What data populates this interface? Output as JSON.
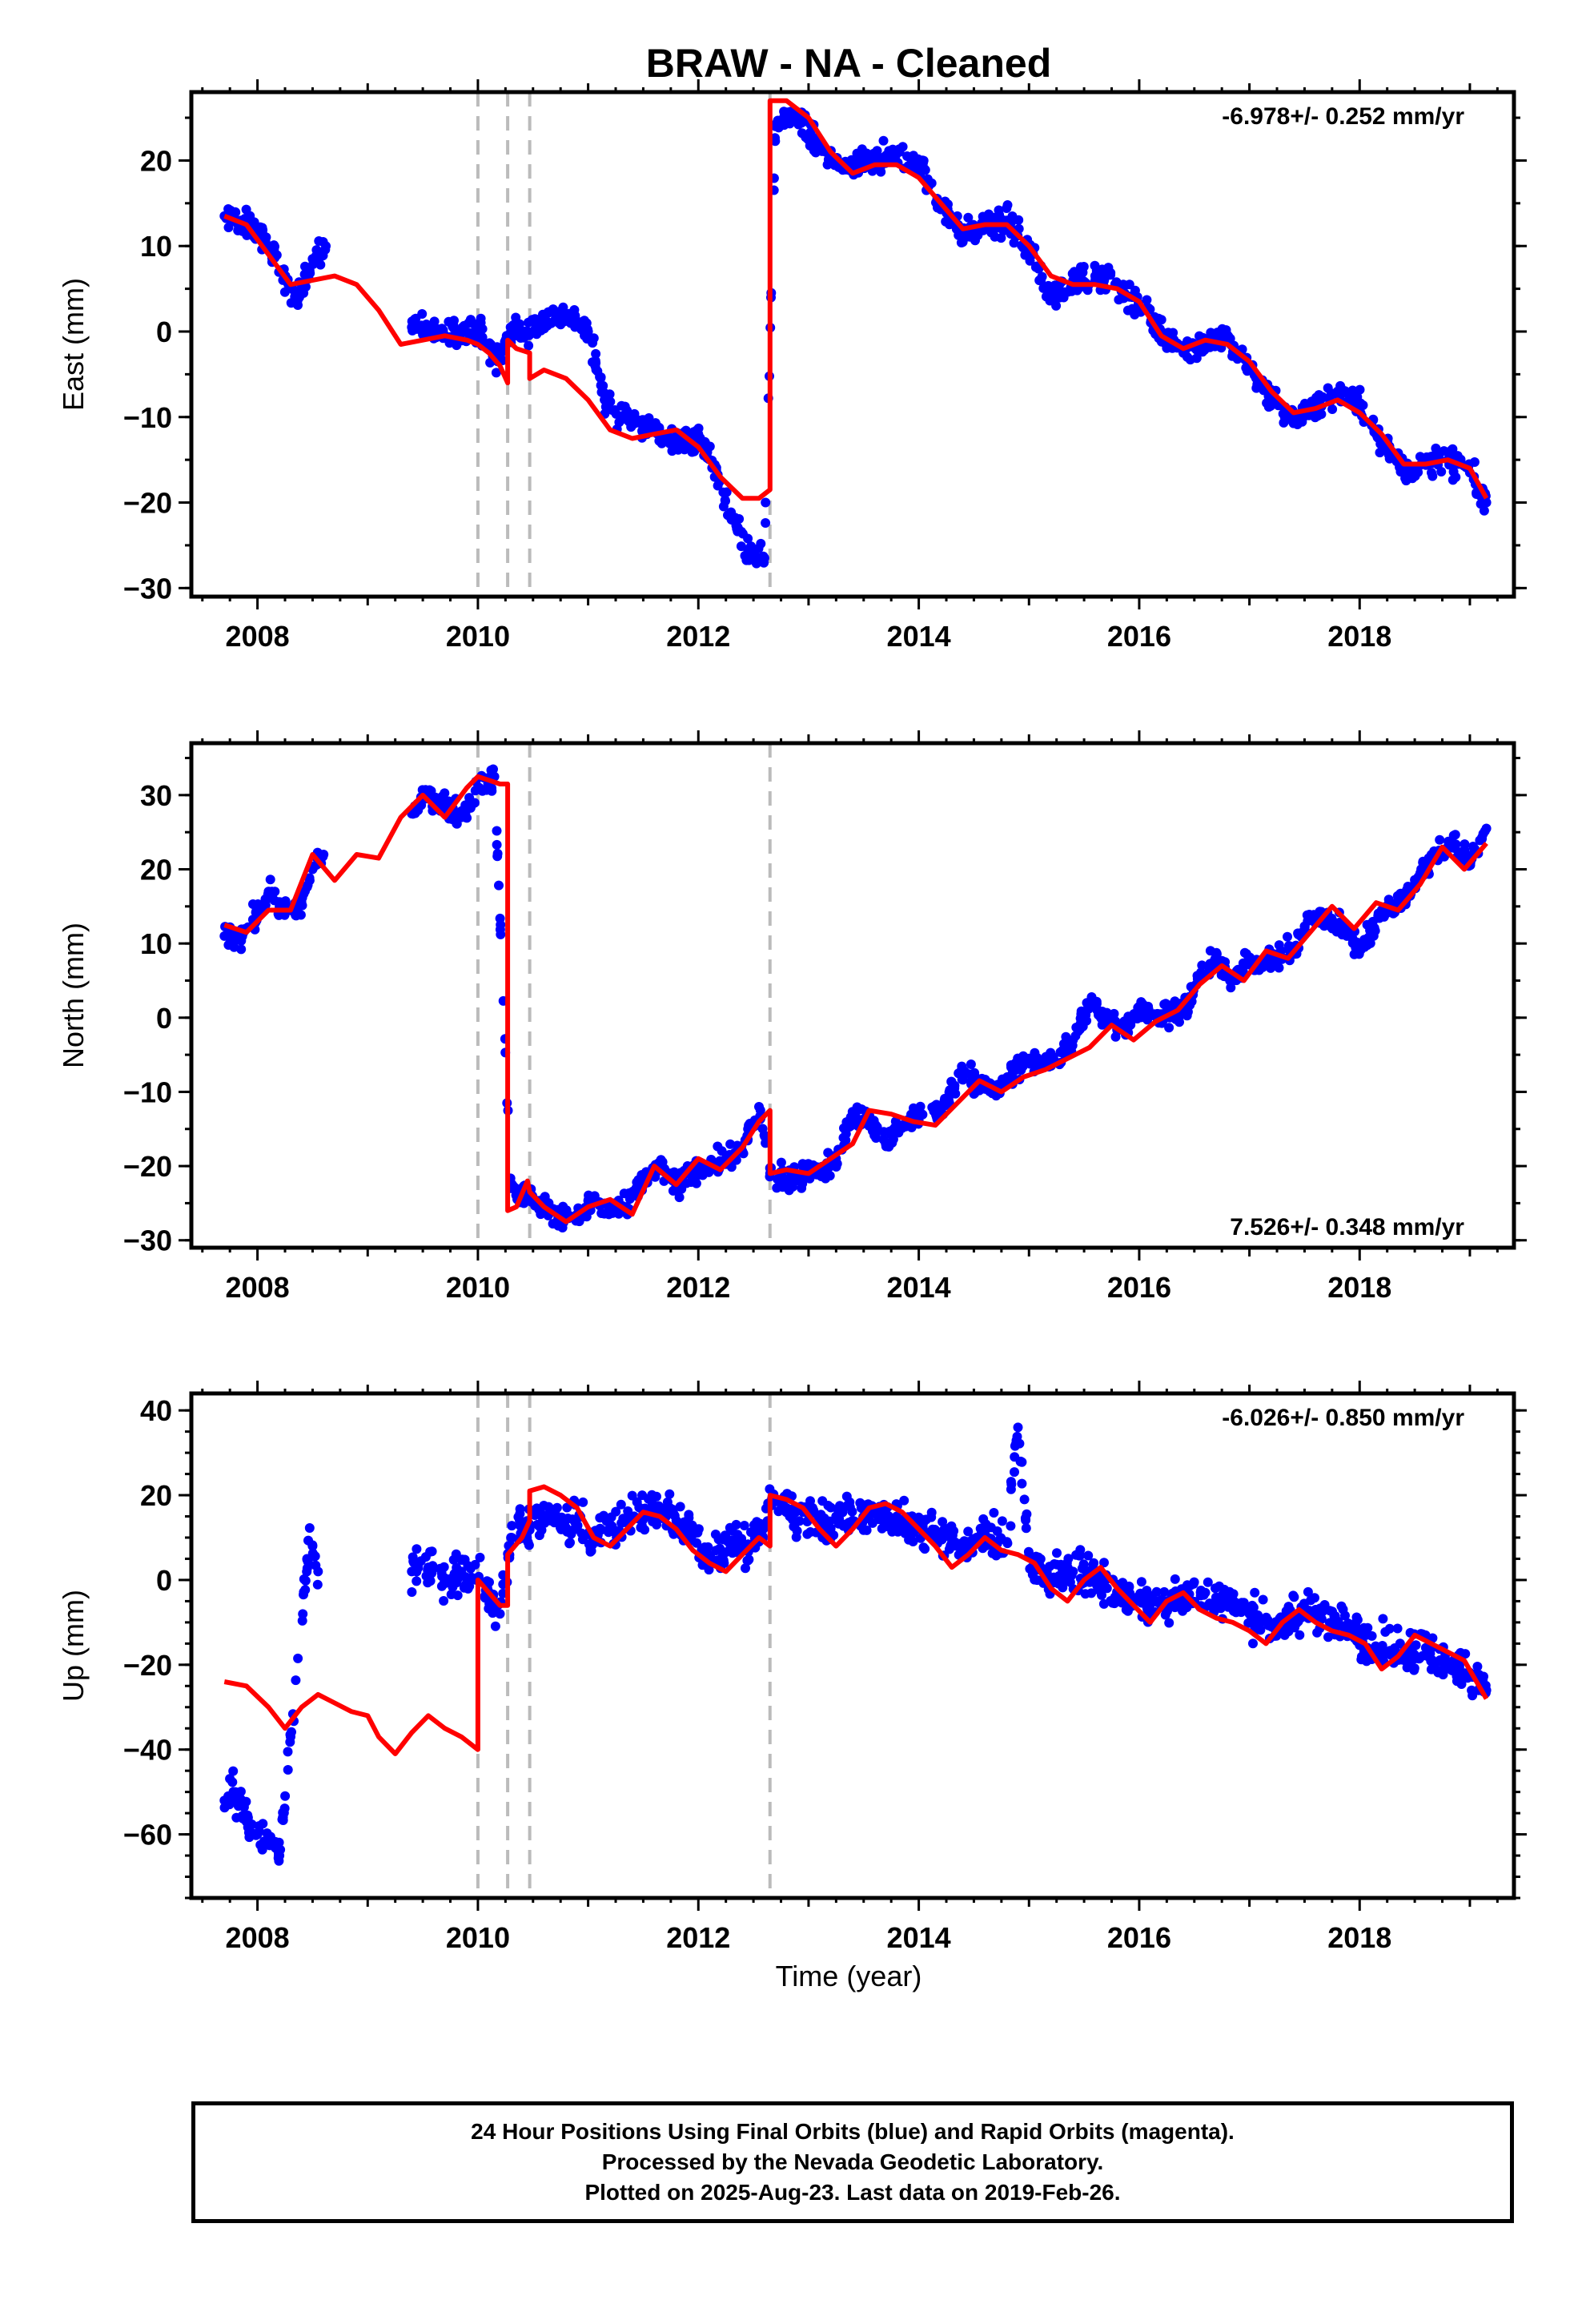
{
  "title": "BRAW  - NA - Cleaned",
  "xlabel": "Time (year)",
  "footer": [
    "24 Hour Positions Using Final Orbits (blue) and Rapid Orbits (magenta).",
    "Processed by the Nevada Geodetic Laboratory.",
    "Plotted on 2025-Aug-23. Last data on 2019-Feb-26."
  ],
  "colors": {
    "points": "#0000ff",
    "model": "#ff0000",
    "steps": "#bbbbbb"
  },
  "chart_data": [
    {
      "type": "scatter",
      "title": "",
      "xlabel": "",
      "ylabel": "East (mm)",
      "xlim": [
        2007.4,
        2019.4
      ],
      "ylim": [
        -31,
        28
      ],
      "xticks": [
        "2008",
        "2010",
        "2012",
        "2014",
        "2016",
        "2018"
      ],
      "yticks": [
        "−30",
        "−20",
        "−10",
        "0",
        "10",
        "20"
      ],
      "rate_label": "-6.978+/- 0.252 mm/yr",
      "rate_position": "top-right",
      "step_dates": [
        2010.0,
        2010.27,
        2010.47,
        2012.65
      ],
      "series": [
        {
          "name": "",
          "kind": "points",
          "x": [
            2007.7,
            2007.85,
            2008.0,
            2008.15,
            2008.28,
            2008.38,
            2008.5,
            2008.62,
            2009.4,
            2009.6,
            2009.8,
            2010.0,
            2010.18,
            2010.3,
            2010.45,
            2010.6,
            2010.8,
            2011.0,
            2011.15,
            2011.3,
            2011.5,
            2011.7,
            2011.9,
            2012.0,
            2012.15,
            2012.3,
            2012.45,
            2012.6,
            2012.7,
            2012.85,
            2013.0,
            2013.2,
            2013.4,
            2013.6,
            2013.8,
            2014.0,
            2014.2,
            2014.4,
            2014.6,
            2014.8,
            2015.0,
            2015.2,
            2015.4,
            2015.6,
            2015.8,
            2016.0,
            2016.2,
            2016.4,
            2016.6,
            2016.8,
            2017.0,
            2017.2,
            2017.4,
            2017.6,
            2017.8,
            2018.0,
            2018.2,
            2018.4,
            2018.6,
            2018.8,
            2019.0,
            2019.15
          ],
          "y": [
            13.5,
            13.0,
            11.5,
            9.0,
            5.5,
            4.0,
            8.5,
            10.0,
            0.5,
            0.0,
            0.0,
            0.5,
            -3.5,
            0.0,
            0.0,
            1.5,
            2.0,
            0.0,
            -8.0,
            -10.0,
            -10.5,
            -12.5,
            -13.0,
            -12.0,
            -16.0,
            -22.0,
            -25.5,
            -26.5,
            24.0,
            25.5,
            23.0,
            20.0,
            19.0,
            20.0,
            21.0,
            19.5,
            15.0,
            11.5,
            12.0,
            13.0,
            9.5,
            4.0,
            6.0,
            6.5,
            5.5,
            3.0,
            0.0,
            -2.5,
            -1.0,
            -1.0,
            -4.0,
            -8.0,
            -10.0,
            -9.0,
            -7.0,
            -8.5,
            -13.0,
            -16.0,
            -15.5,
            -15.0,
            -16.5,
            -20.0
          ]
        },
        {
          "name": "",
          "kind": "model",
          "x": [
            2007.7,
            2007.9,
            2008.1,
            2008.3,
            2008.5,
            2008.7,
            2008.9,
            2009.1,
            2009.3,
            2009.5,
            2009.7,
            2009.9,
            2010.0,
            2010.1,
            2010.2,
            2010.27,
            2010.27,
            2010.35,
            2010.47,
            2010.47,
            2010.6,
            2010.8,
            2011.0,
            2011.2,
            2011.4,
            2011.6,
            2011.8,
            2012.0,
            2012.2,
            2012.4,
            2012.55,
            2012.65,
            2012.65,
            2012.8,
            2013.0,
            2013.2,
            2013.4,
            2013.6,
            2013.8,
            2014.0,
            2014.2,
            2014.4,
            2014.6,
            2014.8,
            2015.0,
            2015.2,
            2015.4,
            2015.6,
            2015.8,
            2016.0,
            2016.2,
            2016.4,
            2016.6,
            2016.8,
            2017.0,
            2017.2,
            2017.4,
            2017.6,
            2017.8,
            2018.0,
            2018.2,
            2018.4,
            2018.6,
            2018.8,
            2019.0,
            2019.15
          ],
          "y": [
            13.5,
            12.5,
            9.0,
            5.5,
            6.0,
            6.5,
            5.5,
            2.5,
            -1.5,
            -1.0,
            -0.5,
            -1.0,
            -1.5,
            -2.5,
            -4.0,
            -6.0,
            -1.0,
            -2.0,
            -2.5,
            -5.5,
            -4.5,
            -5.5,
            -8.0,
            -11.5,
            -12.5,
            -12.0,
            -11.5,
            -13.5,
            -17.0,
            -19.5,
            -19.5,
            -18.5,
            27.0,
            27.0,
            25.0,
            21.0,
            18.5,
            19.5,
            19.5,
            18.0,
            15.0,
            12.0,
            12.5,
            12.5,
            10.0,
            6.5,
            5.5,
            5.5,
            5.0,
            3.5,
            -0.5,
            -2.0,
            -1.0,
            -1.5,
            -3.5,
            -7.0,
            -9.5,
            -9.0,
            -8.0,
            -9.5,
            -12.0,
            -15.5,
            -15.5,
            -15.0,
            -16.0,
            -19.5
          ]
        }
      ]
    },
    {
      "type": "scatter",
      "title": "",
      "xlabel": "",
      "ylabel": "North (mm)",
      "xlim": [
        2007.4,
        2019.4
      ],
      "ylim": [
        -31,
        37
      ],
      "xticks": [
        "2008",
        "2010",
        "2012",
        "2014",
        "2016",
        "2018"
      ],
      "yticks": [
        "−30",
        "−20",
        "−10",
        "0",
        "10",
        "20",
        "30"
      ],
      "rate_label": "7.526+/- 0.348 mm/yr",
      "rate_position": "bottom-right",
      "step_dates": [
        2010.0,
        2010.47,
        2012.65
      ],
      "series": [
        {
          "name": "",
          "kind": "points",
          "x": [
            2007.7,
            2007.85,
            2008.0,
            2008.1,
            2008.2,
            2008.35,
            2008.5,
            2008.6,
            2009.4,
            2009.55,
            2009.7,
            2009.85,
            2010.0,
            2010.15,
            2010.3,
            2010.45,
            2010.6,
            2010.75,
            2010.9,
            2011.05,
            2011.2,
            2011.35,
            2011.5,
            2011.65,
            2011.8,
            2011.95,
            2012.1,
            2012.25,
            2012.4,
            2012.55,
            2012.65,
            2012.8,
            2012.95,
            2013.1,
            2013.25,
            2013.4,
            2013.55,
            2013.7,
            2013.85,
            2014.0,
            2014.2,
            2014.4,
            2014.55,
            2014.7,
            2014.85,
            2015.0,
            2015.2,
            2015.4,
            2015.55,
            2015.7,
            2015.85,
            2016.0,
            2016.2,
            2016.4,
            2016.55,
            2016.7,
            2016.85,
            2017.0,
            2017.2,
            2017.4,
            2017.55,
            2017.7,
            2017.85,
            2018.0,
            2018.2,
            2018.4,
            2018.55,
            2018.7,
            2018.85,
            2019.0,
            2019.15
          ],
          "y": [
            11.0,
            11.0,
            14.0,
            17.0,
            15.0,
            14.0,
            20.0,
            22.0,
            27.5,
            30.0,
            29.0,
            27.0,
            31.0,
            32.5,
            -23.0,
            -24.0,
            -25.5,
            -27.0,
            -26.5,
            -25.0,
            -26.0,
            -25.5,
            -22.0,
            -20.0,
            -22.5,
            -21.0,
            -20.0,
            -19.0,
            -18.0,
            -12.0,
            -21.0,
            -22.0,
            -21.0,
            -20.5,
            -19.0,
            -13.0,
            -14.0,
            -17.0,
            -14.5,
            -13.0,
            -12.5,
            -7.0,
            -9.0,
            -10.0,
            -7.5,
            -5.5,
            -6.5,
            -3.0,
            2.0,
            0.0,
            -1.5,
            1.0,
            0.5,
            1.0,
            5.0,
            8.0,
            5.0,
            7.5,
            8.0,
            9.0,
            13.5,
            13.0,
            12.5,
            9.0,
            14.5,
            16.0,
            19.5,
            22.0,
            23.5,
            21.0,
            25.5
          ]
        },
        {
          "name": "",
          "kind": "model",
          "x": [
            2007.7,
            2007.9,
            2008.1,
            2008.3,
            2008.5,
            2008.7,
            2008.9,
            2009.1,
            2009.3,
            2009.5,
            2009.7,
            2009.9,
            2010.0,
            2010.1,
            2010.2,
            2010.27,
            2010.27,
            2010.35,
            2010.45,
            2010.47,
            2010.6,
            2010.8,
            2011.0,
            2011.2,
            2011.4,
            2011.6,
            2011.8,
            2012.0,
            2012.2,
            2012.4,
            2012.55,
            2012.65,
            2012.65,
            2012.8,
            2013.0,
            2013.2,
            2013.4,
            2013.55,
            2013.75,
            2013.95,
            2014.15,
            2014.35,
            2014.55,
            2014.75,
            2014.95,
            2015.15,
            2015.35,
            2015.55,
            2015.75,
            2015.95,
            2016.15,
            2016.35,
            2016.55,
            2016.75,
            2016.95,
            2017.15,
            2017.35,
            2017.55,
            2017.75,
            2017.95,
            2018.15,
            2018.35,
            2018.55,
            2018.75,
            2018.95,
            2019.15
          ],
          "y": [
            12.5,
            11.5,
            14.5,
            14.5,
            22.0,
            18.5,
            22.0,
            21.5,
            27.0,
            30.0,
            27.0,
            31.0,
            32.5,
            32.0,
            31.5,
            31.5,
            -26.0,
            -25.5,
            -22.0,
            -23.5,
            -25.5,
            -27.5,
            -25.5,
            -24.5,
            -26.5,
            -20.0,
            -22.5,
            -19.0,
            -20.5,
            -17.5,
            -14.0,
            -12.5,
            -21.0,
            -20.5,
            -21.0,
            -19.0,
            -17.0,
            -12.5,
            -13.0,
            -14.0,
            -14.5,
            -11.5,
            -8.5,
            -10.0,
            -8.0,
            -7.0,
            -5.5,
            -4.0,
            -1.0,
            -3.0,
            -0.5,
            1.0,
            4.5,
            7.0,
            5.0,
            9.0,
            8.0,
            11.5,
            15.0,
            12.0,
            15.5,
            14.5,
            18.0,
            23.0,
            20.0,
            23.5
          ]
        }
      ]
    },
    {
      "type": "scatter",
      "title": "",
      "xlabel": "Time (year)",
      "ylabel": "Up (mm)",
      "xlim": [
        2007.4,
        2019.4
      ],
      "ylim": [
        -75,
        44
      ],
      "xticks": [
        "2008",
        "2010",
        "2012",
        "2014",
        "2016",
        "2018"
      ],
      "yticks": [
        "−60",
        "−40",
        "−20",
        "0",
        "20",
        "40"
      ],
      "rate_label": "-6.026+/- 0.850 mm/yr",
      "rate_position": "top-right",
      "step_dates": [
        2010.0,
        2010.27,
        2010.47,
        2012.65
      ],
      "series": [
        {
          "name": "",
          "kind": "points",
          "x": [
            2007.7,
            2007.8,
            2007.9,
            2008.0,
            2008.1,
            2008.2,
            2008.45,
            2008.5,
            2008.55,
            2009.4,
            2009.55,
            2009.7,
            2009.85,
            2010.0,
            2010.1,
            2010.2,
            2010.3,
            2010.45,
            2010.6,
            2010.75,
            2010.9,
            2011.05,
            2011.2,
            2011.35,
            2011.5,
            2011.65,
            2011.8,
            2011.95,
            2012.1,
            2012.25,
            2012.4,
            2012.55,
            2012.65,
            2012.8,
            2012.95,
            2013.1,
            2013.25,
            2013.4,
            2013.55,
            2013.8,
            2014.0,
            2014.2,
            2014.4,
            2014.6,
            2014.8,
            2014.9,
            2015.0,
            2015.2,
            2015.4,
            2015.6,
            2015.8,
            2016.0,
            2016.2,
            2016.4,
            2016.6,
            2016.8,
            2017.0,
            2017.2,
            2017.4,
            2017.6,
            2017.8,
            2018.0,
            2018.2,
            2018.4,
            2018.6,
            2018.8,
            2019.0,
            2019.15
          ],
          "y": [
            -52.0,
            -50.0,
            -57.0,
            -60.0,
            -62.0,
            -65.0,
            5.0,
            8.0,
            2.0,
            2.0,
            3.0,
            0.0,
            2.0,
            0.0,
            -3.0,
            -8.0,
            10.0,
            13.0,
            15.0,
            14.0,
            12.0,
            10.0,
            12.0,
            14.0,
            16.0,
            17.0,
            14.0,
            12.0,
            5.0,
            10.0,
            8.0,
            9.0,
            18.0,
            17.0,
            16.0,
            14.0,
            15.0,
            14.0,
            16.0,
            15.0,
            12.0,
            10.0,
            7.0,
            11.0,
            9.0,
            36.0,
            6.0,
            0.0,
            2.0,
            1.0,
            -3.0,
            -5.0,
            -6.0,
            -4.0,
            -3.0,
            -5.0,
            -8.0,
            -11.0,
            -9.0,
            -7.0,
            -10.0,
            -13.0,
            -16.0,
            -17.0,
            -16.0,
            -20.0,
            -22.0,
            -26.0
          ]
        },
        {
          "name": "",
          "kind": "model",
          "x": [
            2007.7,
            2007.9,
            2008.1,
            2008.25,
            2008.4,
            2008.55,
            2008.7,
            2008.85,
            2009.0,
            2009.1,
            2009.25,
            2009.4,
            2009.55,
            2009.7,
            2009.85,
            2010.0,
            2010.0,
            2010.1,
            2010.2,
            2010.27,
            2010.27,
            2010.4,
            2010.47,
            2010.47,
            2010.6,
            2010.75,
            2010.9,
            2011.05,
            2011.2,
            2011.35,
            2011.5,
            2011.65,
            2011.8,
            2011.95,
            2012.1,
            2012.25,
            2012.4,
            2012.55,
            2012.65,
            2012.65,
            2012.8,
            2012.95,
            2013.1,
            2013.25,
            2013.4,
            2013.55,
            2013.7,
            2013.85,
            2014.0,
            2014.15,
            2014.3,
            2014.45,
            2014.6,
            2014.75,
            2014.9,
            2015.05,
            2015.2,
            2015.35,
            2015.5,
            2015.65,
            2015.8,
            2015.95,
            2016.1,
            2016.25,
            2016.4,
            2016.55,
            2016.7,
            2016.85,
            2017.0,
            2017.15,
            2017.3,
            2017.45,
            2017.6,
            2017.75,
            2017.9,
            2018.05,
            2018.2,
            2018.35,
            2018.5,
            2018.65,
            2018.8,
            2018.95,
            2019.15
          ],
          "y": [
            -24.0,
            -25.0,
            -30.0,
            -35.0,
            -30.0,
            -27.0,
            -29.0,
            -31.0,
            -32.0,
            -37.0,
            -41.0,
            -36.0,
            -32.0,
            -35.0,
            -37.0,
            -40.0,
            0.0,
            -3.0,
            -6.0,
            -6.0,
            6.0,
            10.0,
            14.0,
            21.0,
            22.0,
            20.0,
            17.0,
            10.0,
            8.0,
            12.0,
            16.0,
            15.0,
            12.0,
            7.0,
            4.0,
            2.0,
            6.0,
            10.0,
            8.0,
            20.0,
            19.0,
            17.0,
            12.0,
            8.0,
            12.0,
            17.0,
            18.0,
            16.0,
            12.0,
            8.0,
            3.0,
            6.0,
            10.0,
            7.0,
            6.0,
            4.0,
            -2.0,
            -5.0,
            0.0,
            3.0,
            -2.0,
            -6.0,
            -10.0,
            -5.0,
            -3.0,
            -7.0,
            -9.0,
            -10.0,
            -12.0,
            -15.0,
            -10.0,
            -7.0,
            -10.0,
            -12.0,
            -13.0,
            -15.0,
            -21.0,
            -18.0,
            -13.0,
            -15.0,
            -17.0,
            -19.0,
            -28.0
          ]
        }
      ]
    }
  ]
}
